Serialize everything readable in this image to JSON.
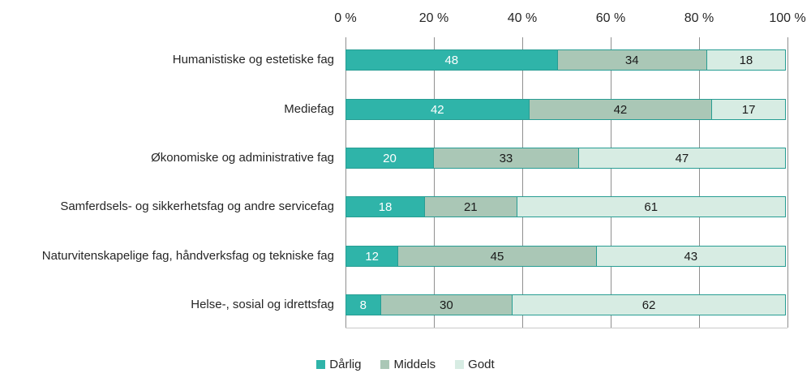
{
  "chart_data": {
    "type": "bar",
    "orientation": "horizontal",
    "stacked": true,
    "title": "",
    "xlabel": "",
    "ylabel": "",
    "xlim": [
      0,
      100
    ],
    "x_ticks": [
      "0 %",
      "20 %",
      "40 %",
      "60 %",
      "80 %",
      "100 %"
    ],
    "grid": "vertical",
    "grid_color": "#8f8f8f",
    "axis_line_color": "#c9c9c9",
    "bar_border_color": "#279d93",
    "categories": [
      "Humanistiske og estetiske fag",
      "Mediefag",
      "Økonomiske og administrative fag",
      "Samferdsels- og sikkerhetsfag og andre servicefag",
      "Naturvitenskapelige fag, håndverksfag og tekniske fag",
      "Helse-, sosial og idrettsfag"
    ],
    "series": [
      {
        "name": "Dårlig",
        "color": "#2fb4a9",
        "value_label_color": "#ffffff",
        "values": [
          48,
          42,
          20,
          18,
          12,
          8
        ]
      },
      {
        "name": "Middels",
        "color": "#aac7b6",
        "value_label_color": "#1a1a1a",
        "values": [
          34,
          42,
          33,
          21,
          45,
          30
        ]
      },
      {
        "name": "Godt",
        "color": "#d7ece3",
        "value_label_color": "#1a1a1a",
        "values": [
          18,
          17,
          47,
          61,
          43,
          62
        ]
      }
    ],
    "legend_position": "bottom"
  }
}
